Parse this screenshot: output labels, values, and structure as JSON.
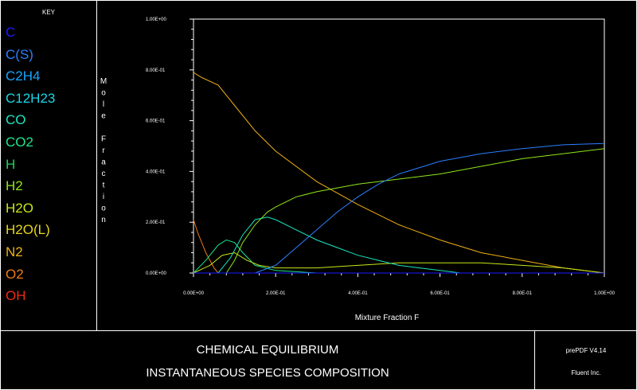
{
  "key": {
    "title": "KEY",
    "items": [
      {
        "label": "C",
        "color": "#1a1aff"
      },
      {
        "label": "C(S)",
        "color": "#2a7fff"
      },
      {
        "label": "C2H4",
        "color": "#16a6ff"
      },
      {
        "label": "C12H23",
        "color": "#1ad6e6"
      },
      {
        "label": "CO",
        "color": "#19e6c0"
      },
      {
        "label": "CO2",
        "color": "#19e68c"
      },
      {
        "label": "H",
        "color": "#1ad64f"
      },
      {
        "label": "H2",
        "color": "#8fe619"
      },
      {
        "label": "H2O",
        "color": "#c8e619"
      },
      {
        "label": "H2O(L)",
        "color": "#e6d619"
      },
      {
        "label": "N2",
        "color": "#f0b015"
      },
      {
        "label": "O2",
        "color": "#f07a15"
      },
      {
        "label": "OH",
        "color": "#f02a15"
      }
    ]
  },
  "titles": {
    "line1": "CHEMICAL EQUILIBRIUM",
    "line2": "INSTANTANEOUS SPECIES COMPOSITION"
  },
  "info": {
    "version": "prePDF V4.14",
    "company": "Fluent Inc."
  },
  "chart_data": {
    "type": "line",
    "xlabel": "Mixture Fraction F",
    "ylabel": "Mole Fraction",
    "xlim": [
      0,
      1
    ],
    "ylim": [
      0,
      1
    ],
    "xticks": [
      "0.00E+00",
      "2.00E-01",
      "4.00E-01",
      "6.00E-01",
      "8.00E-01",
      "1.00E+00"
    ],
    "yticks": [
      "0.00E+00",
      "2.00E-01",
      "4.00E-01",
      "6.00E-01",
      "8.00E-01",
      "1.00E+00"
    ],
    "series": [
      {
        "name": "N2",
        "color": "#f0b015",
        "x": [
          0,
          0.02,
          0.06,
          0.1,
          0.15,
          0.2,
          0.3,
          0.4,
          0.5,
          0.6,
          0.7,
          0.8,
          0.9,
          1.0
        ],
        "y": [
          0.79,
          0.77,
          0.74,
          0.66,
          0.56,
          0.48,
          0.36,
          0.27,
          0.19,
          0.13,
          0.08,
          0.05,
          0.02,
          0.0
        ]
      },
      {
        "name": "O2",
        "color": "#f07a15",
        "x": [
          0,
          0.01,
          0.03,
          0.05,
          0.06
        ],
        "y": [
          0.21,
          0.16,
          0.08,
          0.02,
          0.0
        ]
      },
      {
        "name": "CO2",
        "color": "#19e68c",
        "x": [
          0,
          0.03,
          0.06,
          0.08,
          0.1,
          0.12,
          0.15,
          0.2,
          0.3,
          0.4,
          0.5,
          0.6,
          0.7
        ],
        "y": [
          0.0,
          0.05,
          0.11,
          0.13,
          0.12,
          0.08,
          0.03,
          0.01,
          0.0,
          0.0,
          0.0,
          0.0,
          0.0
        ]
      },
      {
        "name": "H2O",
        "color": "#c8e619",
        "x": [
          0,
          0.04,
          0.07,
          0.1,
          0.13,
          0.16,
          0.2,
          0.3,
          0.4,
          0.5,
          0.6,
          0.7,
          0.8,
          0.9,
          1.0
        ],
        "y": [
          0.0,
          0.03,
          0.07,
          0.08,
          0.05,
          0.03,
          0.02,
          0.02,
          0.03,
          0.04,
          0.04,
          0.04,
          0.03,
          0.02,
          0.0
        ]
      },
      {
        "name": "CO",
        "color": "#19e6c0",
        "x": [
          0.06,
          0.09,
          0.12,
          0.15,
          0.18,
          0.2,
          0.25,
          0.3,
          0.35,
          0.4,
          0.45,
          0.5,
          0.55,
          0.6,
          0.65,
          0.7
        ],
        "y": [
          0.0,
          0.06,
          0.15,
          0.21,
          0.22,
          0.21,
          0.17,
          0.13,
          0.1,
          0.07,
          0.05,
          0.03,
          0.02,
          0.01,
          0.0,
          0.0
        ]
      },
      {
        "name": "H2",
        "color": "#8fe619",
        "x": [
          0.08,
          0.1,
          0.12,
          0.15,
          0.18,
          0.2,
          0.25,
          0.3,
          0.4,
          0.5,
          0.6,
          0.7,
          0.8,
          0.9,
          1.0
        ],
        "y": [
          0.0,
          0.05,
          0.12,
          0.19,
          0.24,
          0.26,
          0.3,
          0.32,
          0.35,
          0.37,
          0.39,
          0.42,
          0.45,
          0.47,
          0.49
        ]
      },
      {
        "name": "C(S)",
        "color": "#2a7fff",
        "x": [
          0.12,
          0.15,
          0.2,
          0.25,
          0.3,
          0.35,
          0.4,
          0.45,
          0.5,
          0.6,
          0.7,
          0.8,
          0.9,
          1.0
        ],
        "y": [
          0.0,
          0.0,
          0.03,
          0.1,
          0.17,
          0.24,
          0.3,
          0.35,
          0.39,
          0.44,
          0.47,
          0.49,
          0.505,
          0.51
        ]
      },
      {
        "name": "C",
        "color": "#1a1aff",
        "x": [
          0,
          1.0
        ],
        "y": [
          0.0,
          0.0
        ]
      }
    ]
  }
}
